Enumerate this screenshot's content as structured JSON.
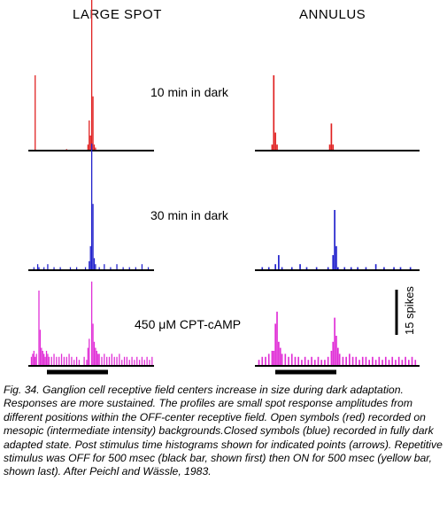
{
  "figure": {
    "column_titles": [
      "LARGE SPOT",
      "ANNULUS"
    ],
    "conditions": [
      "10 min in dark",
      "30 min in dark",
      "450 μM CPT-cAMP"
    ],
    "scale_bar_label": "15 spikes",
    "trace_colors": [
      "#e02020",
      "#2020cc",
      "#e02ed6"
    ],
    "baseline_color": "#000000",
    "stimulus_bar_color": "#000000"
  },
  "chart_data": {
    "type": "bar",
    "description_units": "spikes per bin (post stimulus time histograms)",
    "scale_bar_spikes": 15,
    "panels": [
      {
        "column": "LARGE SPOT",
        "condition": "10 min in dark",
        "bins": 100,
        "peaks": [
          [
            5,
            25
          ],
          [
            30,
            0.5
          ],
          [
            47,
            2
          ],
          [
            48,
            10
          ],
          [
            49,
            5
          ],
          [
            50,
            55
          ],
          [
            51,
            18
          ],
          [
            52,
            2
          ],
          [
            53,
            1
          ]
        ]
      },
      {
        "column": "ANNULUS",
        "condition": "10 min in dark",
        "bins": 100,
        "peaks": [
          [
            10,
            2
          ],
          [
            11,
            25
          ],
          [
            12,
            6
          ],
          [
            13,
            2
          ],
          [
            45,
            2
          ],
          [
            46,
            9
          ],
          [
            47,
            2
          ]
        ]
      },
      {
        "column": "LARGE SPOT",
        "condition": "30 min in dark",
        "bins": 100,
        "peaks": [
          [
            4,
            1
          ],
          [
            7,
            2
          ],
          [
            8,
            1
          ],
          [
            12,
            1
          ],
          [
            15,
            2
          ],
          [
            20,
            1
          ],
          [
            25,
            1
          ],
          [
            33,
            1
          ],
          [
            38,
            1
          ],
          [
            45,
            1
          ],
          [
            48,
            3
          ],
          [
            49,
            8
          ],
          [
            50,
            42
          ],
          [
            51,
            22
          ],
          [
            52,
            4
          ],
          [
            53,
            2
          ],
          [
            56,
            1
          ],
          [
            60,
            2
          ],
          [
            65,
            1
          ],
          [
            70,
            2
          ],
          [
            75,
            1
          ],
          [
            80,
            1
          ],
          [
            85,
            1
          ],
          [
            90,
            2
          ],
          [
            95,
            1
          ]
        ]
      },
      {
        "column": "ANNULUS",
        "condition": "30 min in dark",
        "bins": 100,
        "peaks": [
          [
            4,
            1
          ],
          [
            8,
            1
          ],
          [
            12,
            2
          ],
          [
            14,
            5
          ],
          [
            16,
            1
          ],
          [
            22,
            1
          ],
          [
            27,
            2
          ],
          [
            31,
            1
          ],
          [
            37,
            1
          ],
          [
            44,
            1
          ],
          [
            47,
            5
          ],
          [
            48,
            20
          ],
          [
            49,
            8
          ],
          [
            50,
            1
          ],
          [
            54,
            1
          ],
          [
            58,
            1
          ],
          [
            62,
            1
          ],
          [
            67,
            1
          ],
          [
            73,
            2
          ],
          [
            78,
            1
          ],
          [
            84,
            1
          ],
          [
            88,
            1
          ],
          [
            94,
            1
          ]
        ]
      },
      {
        "column": "LARGE SPOT",
        "condition": "450 μM CPT-cAMP",
        "bins": 100,
        "peaks": [
          [
            2,
            3
          ],
          [
            3,
            4
          ],
          [
            4,
            5
          ],
          [
            5,
            3
          ],
          [
            6,
            4
          ],
          [
            8,
            25
          ],
          [
            9,
            12
          ],
          [
            10,
            6
          ],
          [
            11,
            5
          ],
          [
            12,
            4
          ],
          [
            13,
            3
          ],
          [
            14,
            5
          ],
          [
            15,
            4
          ],
          [
            16,
            3
          ],
          [
            18,
            3
          ],
          [
            20,
            4
          ],
          [
            22,
            3
          ],
          [
            24,
            3
          ],
          [
            26,
            4
          ],
          [
            28,
            3
          ],
          [
            30,
            3
          ],
          [
            32,
            4
          ],
          [
            34,
            3
          ],
          [
            36,
            2
          ],
          [
            38,
            3
          ],
          [
            40,
            2
          ],
          [
            44,
            3
          ],
          [
            46,
            2
          ],
          [
            47,
            6
          ],
          [
            48,
            9
          ],
          [
            50,
            28
          ],
          [
            51,
            14
          ],
          [
            52,
            8
          ],
          [
            53,
            6
          ],
          [
            54,
            5
          ],
          [
            55,
            4
          ],
          [
            56,
            4
          ],
          [
            58,
            3
          ],
          [
            60,
            4
          ],
          [
            62,
            3
          ],
          [
            64,
            3
          ],
          [
            66,
            4
          ],
          [
            68,
            3
          ],
          [
            70,
            3
          ],
          [
            72,
            4
          ],
          [
            74,
            2
          ],
          [
            76,
            3
          ],
          [
            78,
            3
          ],
          [
            80,
            2
          ],
          [
            82,
            3
          ],
          [
            84,
            2
          ],
          [
            86,
            3
          ],
          [
            88,
            2
          ],
          [
            90,
            3
          ],
          [
            92,
            2
          ],
          [
            94,
            3
          ],
          [
            96,
            2
          ],
          [
            98,
            3
          ]
        ]
      },
      {
        "column": "ANNULUS",
        "condition": "450 μM CPT-cAMP",
        "bins": 100,
        "peaks": [
          [
            2,
            2
          ],
          [
            4,
            3
          ],
          [
            6,
            3
          ],
          [
            8,
            4
          ],
          [
            10,
            5
          ],
          [
            11,
            5
          ],
          [
            12,
            14
          ],
          [
            13,
            18
          ],
          [
            14,
            8
          ],
          [
            15,
            6
          ],
          [
            16,
            4
          ],
          [
            18,
            4
          ],
          [
            20,
            3
          ],
          [
            22,
            4
          ],
          [
            24,
            3
          ],
          [
            26,
            3
          ],
          [
            28,
            2
          ],
          [
            30,
            3
          ],
          [
            32,
            2
          ],
          [
            34,
            3
          ],
          [
            36,
            2
          ],
          [
            38,
            3
          ],
          [
            40,
            2
          ],
          [
            42,
            2
          ],
          [
            44,
            3
          ],
          [
            46,
            5
          ],
          [
            47,
            8
          ],
          [
            48,
            16
          ],
          [
            49,
            10
          ],
          [
            50,
            6
          ],
          [
            51,
            4
          ],
          [
            53,
            3
          ],
          [
            55,
            3
          ],
          [
            57,
            4
          ],
          [
            59,
            3
          ],
          [
            61,
            3
          ],
          [
            63,
            2
          ],
          [
            65,
            3
          ],
          [
            67,
            3
          ],
          [
            69,
            2
          ],
          [
            71,
            3
          ],
          [
            73,
            2
          ],
          [
            75,
            3
          ],
          [
            77,
            2
          ],
          [
            79,
            3
          ],
          [
            81,
            2
          ],
          [
            83,
            3
          ],
          [
            85,
            2
          ],
          [
            87,
            3
          ],
          [
            89,
            2
          ],
          [
            91,
            3
          ],
          [
            93,
            2
          ],
          [
            95,
            3
          ],
          [
            97,
            2
          ]
        ]
      }
    ]
  },
  "caption": "Fig. 34. Ganglion cell receptive field centers increase in size during dark adaptation. Responses are more sustained. The profiles are small spot response amplitudes from different positions within the OFF-center receptive field. Open symbols (red) recorded on mesopic (intermediate intensity) backgrounds.Closed symbols (blue) recorded in fully dark adapted state. Post stimulus time histograms shown for indicated points (arrows). Repetitive stimulus was OFF for 500 msec (black bar, shown first) then ON for 500 msec (yellow bar, shown last). After Peichl and Wässle, 1983."
}
